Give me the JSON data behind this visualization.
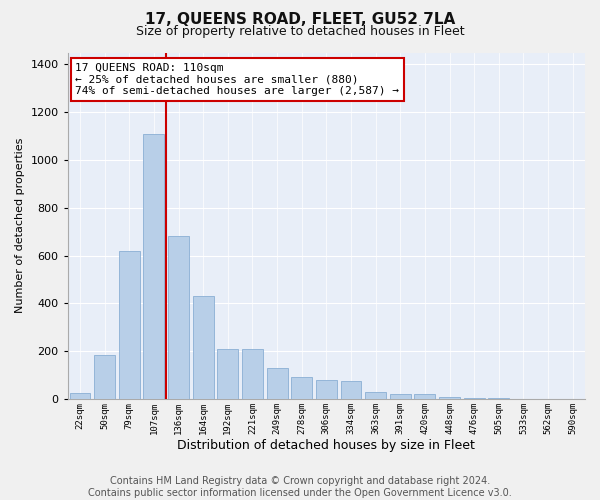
{
  "title": "17, QUEENS ROAD, FLEET, GU52 7LA",
  "subtitle": "Size of property relative to detached houses in Fleet",
  "xlabel": "Distribution of detached houses by size in Fleet",
  "ylabel": "Number of detached properties",
  "footer_line1": "Contains HM Land Registry data © Crown copyright and database right 2024.",
  "footer_line2": "Contains public sector information licensed under the Open Government Licence v3.0.",
  "categories": [
    "22sqm",
    "50sqm",
    "79sqm",
    "107sqm",
    "136sqm",
    "164sqm",
    "192sqm",
    "221sqm",
    "249sqm",
    "278sqm",
    "306sqm",
    "334sqm",
    "363sqm",
    "391sqm",
    "420sqm",
    "448sqm",
    "476sqm",
    "505sqm",
    "533sqm",
    "562sqm",
    "590sqm"
  ],
  "values": [
    25,
    185,
    620,
    1110,
    680,
    430,
    210,
    210,
    130,
    90,
    80,
    75,
    30,
    20,
    20,
    10,
    5,
    5,
    0,
    0,
    0
  ],
  "bar_color": "#b8cfe8",
  "bar_edge_color": "#8aafd4",
  "vline_index": 3,
  "vline_color": "#cc0000",
  "ylim_max": 1450,
  "yticks": [
    0,
    200,
    400,
    600,
    800,
    1000,
    1200,
    1400
  ],
  "annotation_line1": "17 QUEENS ROAD: 110sqm",
  "annotation_line2": "← 25% of detached houses are smaller (880)",
  "annotation_line3": "74% of semi-detached houses are larger (2,587) →",
  "annotation_box_color": "#ffffff",
  "annotation_box_edge": "#cc0000",
  "title_fontsize": 11,
  "subtitle_fontsize": 9,
  "annotation_fontsize": 8,
  "xlabel_fontsize": 9,
  "ylabel_fontsize": 8,
  "footer_fontsize": 7,
  "fig_facecolor": "#f0f0f0",
  "plot_facecolor": "#e8eef8",
  "grid_color": "#ffffff"
}
